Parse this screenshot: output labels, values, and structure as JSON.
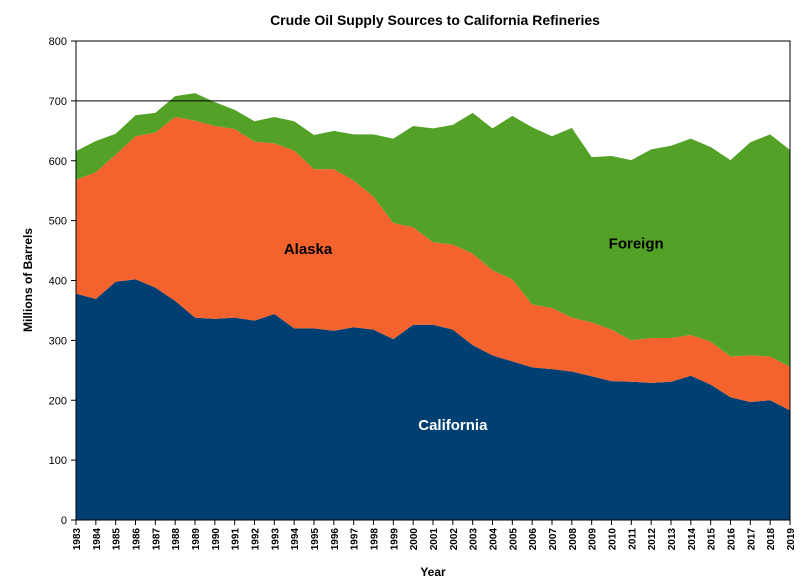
{
  "chart_data": {
    "type": "area",
    "stacked": true,
    "title": "Crude Oil Supply Sources to California Refineries",
    "xlabel": "Year",
    "ylabel": "Millions of Barrels",
    "ylim": [
      0,
      800
    ],
    "yticks": [
      0,
      100,
      200,
      300,
      400,
      500,
      600,
      700,
      800
    ],
    "reference_line": 700,
    "grid": false,
    "x": [
      1983,
      1984,
      1985,
      1986,
      1987,
      1988,
      1989,
      1990,
      1991,
      1992,
      1993,
      1994,
      1995,
      1996,
      1997,
      1998,
      1999,
      2000,
      2001,
      2002,
      2003,
      2004,
      2005,
      2006,
      2007,
      2008,
      2009,
      2010,
      2011,
      2012,
      2013,
      2014,
      2015,
      2016,
      2017,
      2018,
      2019
    ],
    "series": [
      {
        "name": "California",
        "color": "#003f72",
        "label_color": "#ffffff",
        "values": [
          378,
          369,
          398,
          402,
          388,
          366,
          338,
          336,
          338,
          333,
          344,
          320,
          320,
          316,
          322,
          318,
          302,
          326,
          326,
          318,
          292,
          275,
          265,
          255,
          252,
          248,
          240,
          232,
          231,
          229,
          231,
          241,
          226,
          205,
          197,
          200,
          183
        ]
      },
      {
        "name": "Alaska",
        "color": "#f4632e",
        "label_color": "#000000",
        "values": [
          190,
          212,
          212,
          239,
          259,
          307,
          329,
          322,
          315,
          299,
          285,
          297,
          266,
          270,
          245,
          222,
          194,
          163,
          138,
          142,
          153,
          142,
          137,
          105,
          102,
          90,
          90,
          86,
          69,
          75,
          73,
          68,
          72,
          68,
          78,
          73,
          73
        ]
      },
      {
        "name": "Foreign",
        "color": "#53a227",
        "label_color": "#000000",
        "values": [
          48,
          52,
          35,
          35,
          33,
          35,
          46,
          40,
          32,
          34,
          44,
          49,
          57,
          64,
          77,
          104,
          141,
          169,
          190,
          200,
          235,
          237,
          273,
          296,
          287,
          317,
          276,
          290,
          301,
          315,
          321,
          328,
          325,
          328,
          356,
          371,
          362
        ]
      }
    ]
  }
}
